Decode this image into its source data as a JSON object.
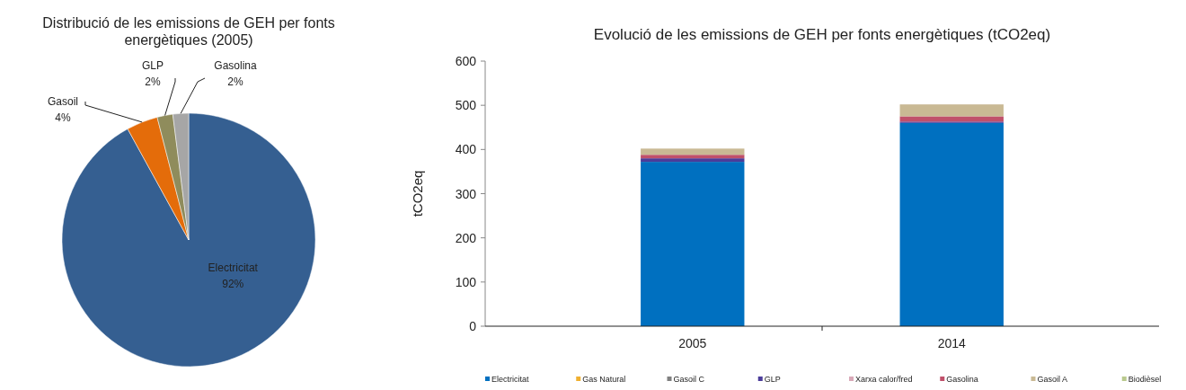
{
  "chart_data": [
    {
      "type": "pie",
      "title": "Distribució de les emissions de GEH per  fonts energètiques (2005)",
      "categories": [
        "Electricitat",
        "Gasoil",
        "GLP",
        "Gasolina"
      ],
      "values": [
        92,
        4,
        2,
        2
      ],
      "colors": [
        "#355f91",
        "#e46c0a",
        "#8f8c5c",
        "#a6a6a6"
      ],
      "value_labels": [
        "92%",
        "4%",
        "2%",
        "2%"
      ]
    },
    {
      "type": "bar",
      "stacked": true,
      "title": "Evolució de les emissions de GEH per fonts energètiques (tCO2eq)",
      "ylabel": "tCO2eq",
      "categories": [
        "2005",
        "2014"
      ],
      "ylim": [
        0,
        600
      ],
      "yticks": [
        0,
        100,
        200,
        300,
        400,
        500,
        600
      ],
      "legend": "bottom",
      "series": [
        {
          "name": "Electricitat",
          "color": "#0070c0",
          "values": [
            372,
            460
          ]
        },
        {
          "name": "Gas Natural",
          "color": "#f0b030",
          "values": [
            0,
            0
          ]
        },
        {
          "name": "Gasoil C",
          "color": "#808080",
          "values": [
            0,
            0
          ]
        },
        {
          "name": "GLP",
          "color": "#4b3c9a",
          "values": [
            8,
            3
          ]
        },
        {
          "name": "Xarxa calor/fred",
          "color": "#d9a9b8",
          "values": [
            0,
            0
          ]
        },
        {
          "name": "Gasolina",
          "color": "#c0506a",
          "values": [
            8,
            12
          ]
        },
        {
          "name": "Gasoil A",
          "color": "#c9b994",
          "values": [
            14,
            27
          ]
        },
        {
          "name": "Biodièsel",
          "color": "#b9c98e",
          "values": [
            0,
            0
          ]
        }
      ]
    }
  ]
}
